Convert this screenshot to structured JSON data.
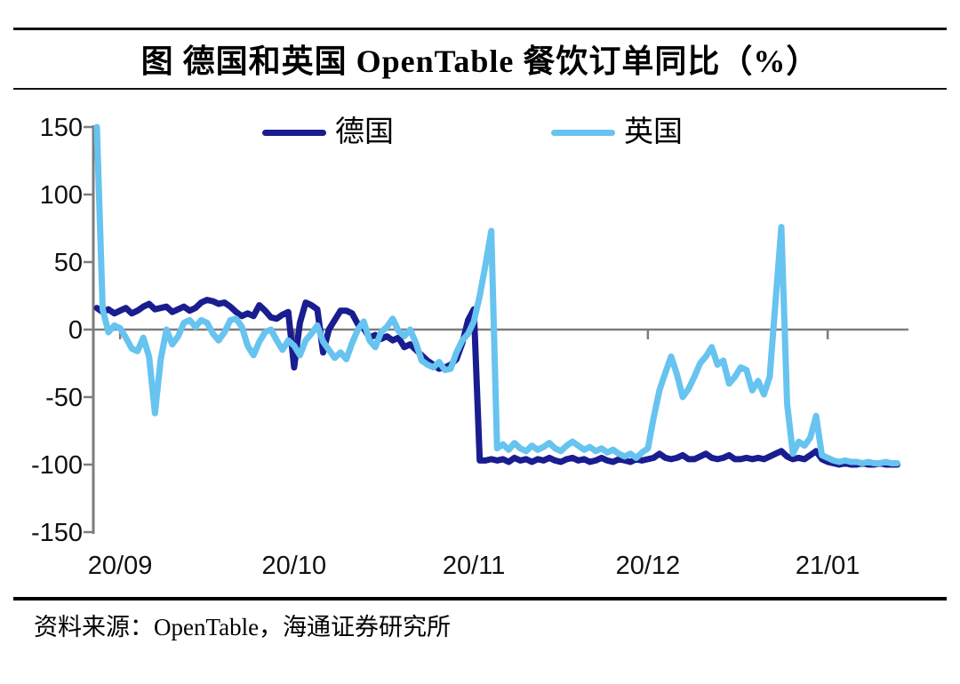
{
  "figure": {
    "title": "图  德国和英国 OpenTable 餐饮订单同比（%）",
    "source": "资料来源：OpenTable，海通证券研究所"
  },
  "legend": [
    {
      "id": "germany",
      "label": "德国",
      "color": "#191d8f"
    },
    {
      "id": "uk",
      "label": "英国",
      "color": "#67c3ef"
    }
  ],
  "chart_data": {
    "type": "line",
    "title": "德国和英国 OpenTable 餐饮订单同比（%）",
    "x_start_date": "2020-08-28",
    "x_frequency": "daily",
    "ylim": [
      -150,
      150
    ],
    "yticks": [
      150,
      100,
      50,
      0,
      -50,
      -100,
      -150
    ],
    "xticklabels": [
      "20/09",
      "20/10",
      "20/11",
      "20/12",
      "21/01"
    ],
    "xtick_day_offsets": [
      4,
      34,
      65,
      95,
      126
    ],
    "grid": "zero-line-only",
    "legend_position": "top",
    "axis_color": "#7d7d7d",
    "tick_label_color": "#111111",
    "series": [
      {
        "name": "德国",
        "id": "germany",
        "color": "#191d8f",
        "values": [
          16,
          13,
          15,
          12,
          14,
          16,
          12,
          14,
          17,
          19,
          15,
          16,
          17,
          13,
          15,
          17,
          14,
          16,
          20,
          22,
          21,
          19,
          20,
          17,
          13,
          10,
          12,
          10,
          18,
          14,
          9,
          8,
          11,
          13,
          -28,
          5,
          20,
          18,
          15,
          -17,
          0,
          7,
          14,
          14,
          12,
          4,
          1,
          -6,
          -4,
          -7,
          -5,
          -8,
          -6,
          -13,
          -11,
          -15,
          -19,
          -23,
          -26,
          -29,
          -28,
          -26,
          -22,
          -10,
          7,
          15,
          -97,
          -97,
          -96,
          -97,
          -96,
          -98,
          -95,
          -97,
          -96,
          -98,
          -96,
          -97,
          -95,
          -97,
          -98,
          -96,
          -95,
          -97,
          -96,
          -98,
          -97,
          -95,
          -97,
          -98,
          -96,
          -97,
          -98,
          -96,
          -97,
          -96,
          -95,
          -92,
          -95,
          -96,
          -95,
          -93,
          -96,
          -96,
          -94,
          -92,
          -95,
          -96,
          -95,
          -93,
          -96,
          -96,
          -95,
          -96,
          -95,
          -96,
          -94,
          -92,
          -90,
          -94,
          -96,
          -95,
          -96,
          -93,
          -90,
          -96,
          -98,
          -99,
          -100,
          -99,
          -100,
          -100,
          -99,
          -100,
          -100,
          -99,
          -100,
          -100,
          -100
        ]
      },
      {
        "name": "英国",
        "id": "uk",
        "color": "#67c3ef",
        "values": [
          150,
          15,
          -2,
          3,
          1,
          -6,
          -14,
          -16,
          -6,
          -20,
          -62,
          -22,
          0,
          -11,
          -5,
          5,
          7,
          2,
          7,
          5,
          -3,
          -8,
          -2,
          7,
          8,
          2,
          -12,
          -19,
          -9,
          -2,
          0,
          -8,
          -15,
          -8,
          -12,
          -19,
          -8,
          -3,
          3,
          -9,
          -15,
          -21,
          -17,
          -22,
          -10,
          0,
          6,
          -8,
          -13,
          -2,
          2,
          8,
          -1,
          -5,
          0,
          -10,
          -23,
          -26,
          -28,
          -24,
          -30,
          -29,
          -17,
          -8,
          -3,
          6,
          25,
          48,
          73,
          -88,
          -85,
          -89,
          -84,
          -88,
          -90,
          -86,
          -89,
          -87,
          -84,
          -88,
          -90,
          -86,
          -83,
          -86,
          -89,
          -87,
          -90,
          -88,
          -91,
          -89,
          -92,
          -94,
          -92,
          -95,
          -91,
          -88,
          -65,
          -45,
          -32,
          -20,
          -33,
          -50,
          -44,
          -35,
          -25,
          -20,
          -13,
          -26,
          -23,
          -40,
          -35,
          -28,
          -30,
          -45,
          -38,
          -48,
          -35,
          20,
          76,
          -55,
          -92,
          -83,
          -86,
          -80,
          -64,
          -93,
          -95,
          -97,
          -98,
          -97,
          -98,
          -98,
          -99,
          -98,
          -99,
          -99,
          -98,
          -99,
          -99
        ]
      }
    ]
  }
}
